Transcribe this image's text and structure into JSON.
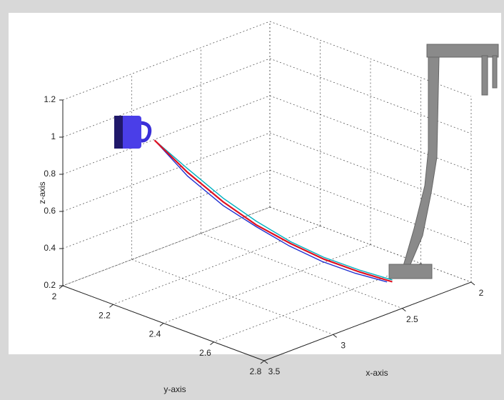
{
  "chart_data": {
    "type": "line3d",
    "xlabel": "x-axis",
    "ylabel": "y-axis",
    "zlabel": "z-axis",
    "xlim": [
      2,
      3.5
    ],
    "ylim": [
      2,
      2.8
    ],
    "zlim": [
      0.2,
      1.2
    ],
    "xticks": [
      2,
      2.5,
      3,
      3.5
    ],
    "yticks": [
      2,
      2.2,
      2.4,
      2.6,
      2.8
    ],
    "zticks": [
      0.2,
      0.4,
      0.6,
      0.8,
      1,
      1.2
    ],
    "grid": true,
    "series": [
      {
        "color": "#00b0c0",
        "x": [
          3.2,
          3.07,
          2.94,
          2.81,
          2.67,
          2.54,
          2.41,
          2.28
        ],
        "y": [
          2.2,
          2.26,
          2.33,
          2.39,
          2.45,
          2.51,
          2.58,
          2.64
        ],
        "z": [
          1.0,
          0.84,
          0.68,
          0.55,
          0.43,
          0.34,
          0.27,
          0.21
        ]
      },
      {
        "color": "#2030d0",
        "x": [
          3.2,
          3.07,
          2.94,
          2.81,
          2.68,
          2.55,
          2.42,
          2.3
        ],
        "y": [
          2.2,
          2.26,
          2.33,
          2.39,
          2.45,
          2.51,
          2.57,
          2.63
        ],
        "z": [
          1.0,
          0.8,
          0.64,
          0.52,
          0.41,
          0.32,
          0.25,
          0.2
        ]
      },
      {
        "color": "#e01020",
        "x": [
          3.2,
          3.07,
          2.94,
          2.81,
          2.67,
          2.54,
          2.41,
          2.28
        ],
        "y": [
          2.2,
          2.26,
          2.33,
          2.39,
          2.45,
          2.51,
          2.58,
          2.64
        ],
        "z": [
          1.0,
          0.82,
          0.66,
          0.53,
          0.42,
          0.33,
          0.26,
          0.2
        ]
      }
    ]
  }
}
